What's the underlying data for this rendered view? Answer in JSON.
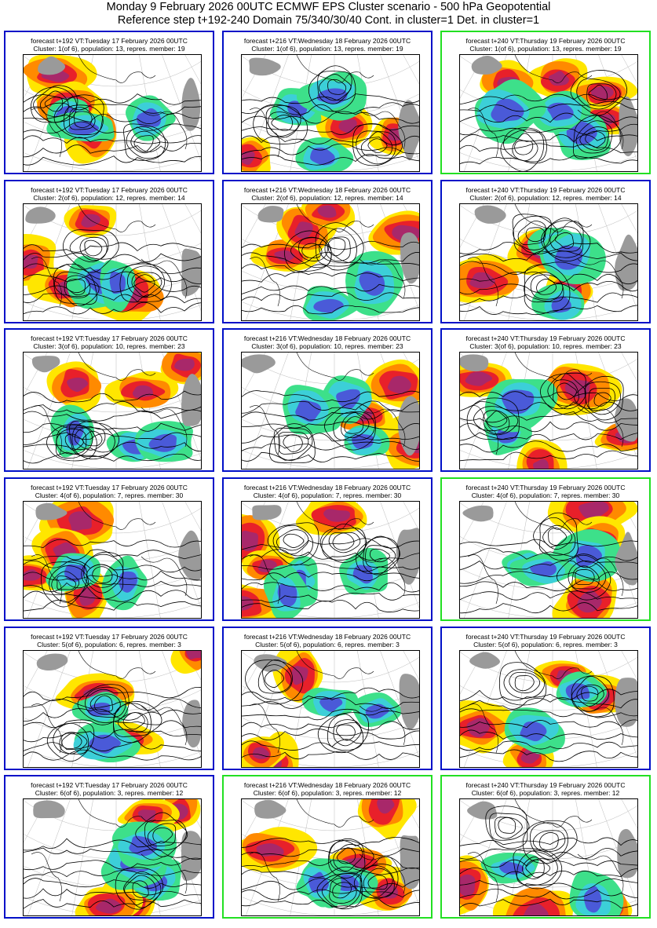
{
  "header": {
    "line1": "Monday 9 February 2026 00UTC ECMWF EPS Cluster scenario - 500 hPa Geopotential",
    "line2": "Reference step t+192-240 Domain 75/340/30/40 Cont. in cluster=1 Det. in cluster=1"
  },
  "colors": {
    "blue_frame": "#0010c8",
    "green_frame": "#22e022",
    "anomaly_strong_negative": "#4a5ad8",
    "anomaly_negative": "#3ccfd8",
    "anomaly_weak_negative": "#3de08a",
    "anomaly_weak_positive": "#ffe600",
    "anomaly_positive": "#ff8a00",
    "anomaly_strong_positive": "#e8202a",
    "anomaly_extreme_positive": "#a8286a",
    "land_mask": "#9a9a9a"
  },
  "panels": [
    {
      "cap1": "forecast t+192 VT:Tuesday 17 February 2026 00UTC",
      "cap2": "Cluster: 1(of 6), population: 13, repres. member: 19",
      "frame": "blue"
    },
    {
      "cap1": "forecast t+216 VT:Wednesday 18 February 2026 00UTC",
      "cap2": "Cluster: 1(of 6), population: 13, repres. member: 19",
      "frame": "blue"
    },
    {
      "cap1": "forecast t+240 VT:Thursday 19 February 2026 00UTC",
      "cap2": "Cluster: 1(of 6), population: 13, repres. member: 19",
      "frame": "green"
    },
    {
      "cap1": "forecast t+192 VT:Tuesday 17 February 2026 00UTC",
      "cap2": "Cluster: 2(of 6), population: 12, repres. member: 14",
      "frame": "blue"
    },
    {
      "cap1": "forecast t+216 VT:Wednesday 18 February 2026 00UTC",
      "cap2": "Cluster: 2(of 6), population: 12, repres. member: 14",
      "frame": "blue"
    },
    {
      "cap1": "forecast t+240 VT:Thursday 19 February 2026 00UTC",
      "cap2": "Cluster: 2(of 6), population: 12, repres. member: 14",
      "frame": "blue"
    },
    {
      "cap1": "forecast t+192 VT:Tuesday 17 February 2026 00UTC",
      "cap2": "Cluster: 3(of 6), population: 10, repres. member: 23",
      "frame": "blue"
    },
    {
      "cap1": "forecast t+216 VT:Wednesday 18 February 2026 00UTC",
      "cap2": "Cluster: 3(of 6), population: 10, repres. member: 23",
      "frame": "blue"
    },
    {
      "cap1": "forecast t+240 VT:Thursday 19 February 2026 00UTC",
      "cap2": "Cluster: 3(of 6), population: 10, repres. member: 23",
      "frame": "blue"
    },
    {
      "cap1": "forecast t+192 VT:Tuesday 17 February 2026 00UTC",
      "cap2": "Cluster: 4(of 6), population: 7, repres. member: 30",
      "frame": "blue"
    },
    {
      "cap1": "forecast t+216 VT:Wednesday 18 February 2026 00UTC",
      "cap2": "Cluster: 4(of 6), population: 7, repres. member: 30",
      "frame": "blue"
    },
    {
      "cap1": "forecast t+240 VT:Thursday 19 February 2026 00UTC",
      "cap2": "Cluster: 4(of 6), population: 7, repres. member: 30",
      "frame": "green"
    },
    {
      "cap1": "forecast t+192 VT:Tuesday 17 February 2026 00UTC",
      "cap2": "Cluster: 5(of 6), population: 6, repres. member: 3",
      "frame": "blue"
    },
    {
      "cap1": "forecast t+216 VT:Wednesday 18 February 2026 00UTC",
      "cap2": "Cluster: 5(of 6), population: 6, repres. member: 3",
      "frame": "blue"
    },
    {
      "cap1": "forecast t+240 VT:Thursday 19 February 2026 00UTC",
      "cap2": "Cluster: 5(of 6), population: 6, repres. member: 3",
      "frame": "blue"
    },
    {
      "cap1": "forecast t+192 VT:Tuesday 17 February 2026 00UTC",
      "cap2": "Cluster: 6(of 6), population: 3, repres. member: 12",
      "frame": "blue"
    },
    {
      "cap1": "forecast t+216 VT:Wednesday 18 February 2026 00UTC",
      "cap2": "Cluster: 6(of 6), population: 3, repres. member: 12",
      "frame": "green"
    },
    {
      "cap1": "forecast t+240 VT:Thursday 19 February 2026 00UTC",
      "cap2": "Cluster: 6(of 6), population: 3, repres. member: 12",
      "frame": "green"
    }
  ]
}
